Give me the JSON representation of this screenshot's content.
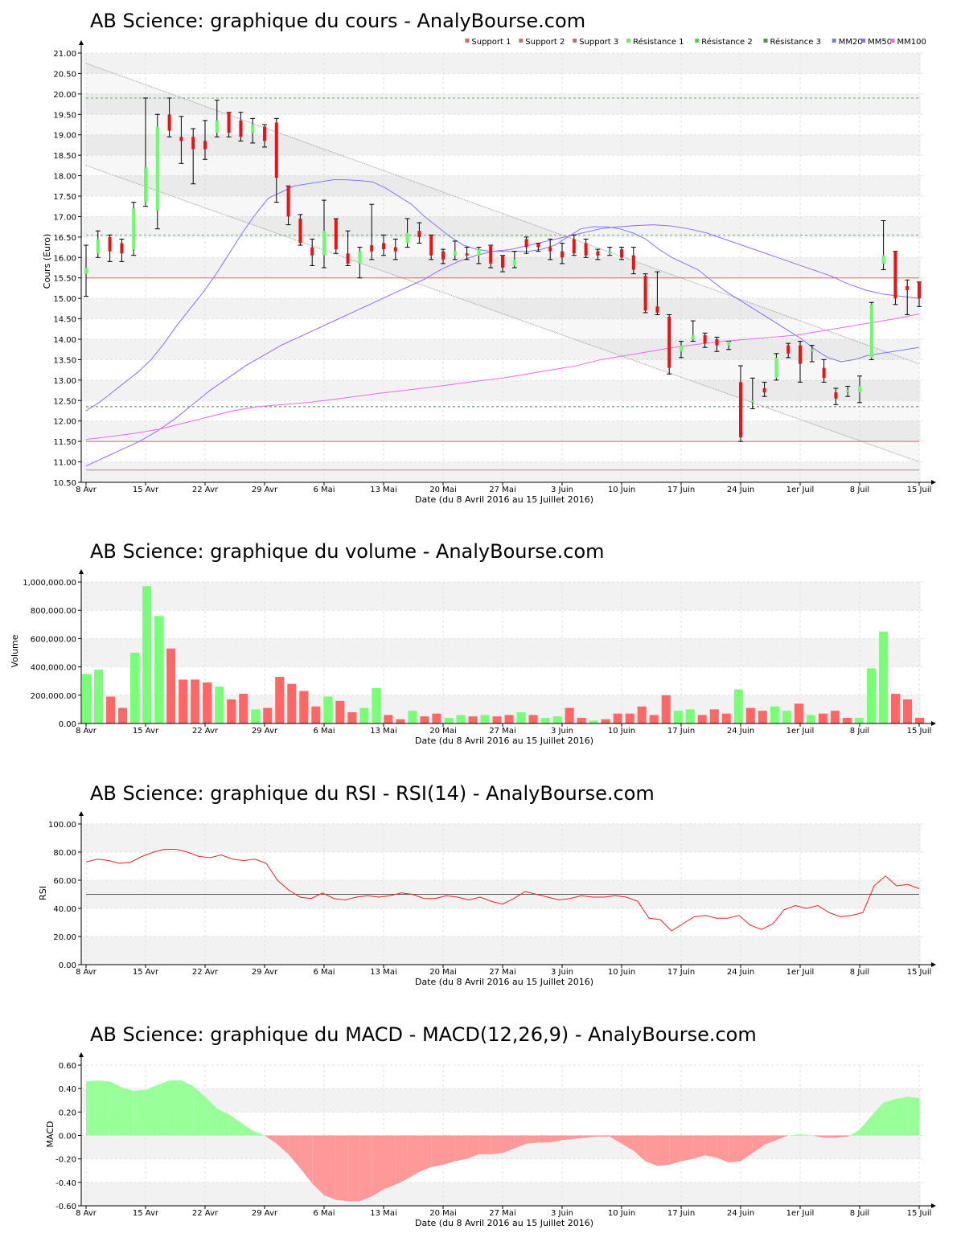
{
  "date_axis": {
    "ticks": [
      "8 Avr",
      "15 Avr",
      "22 Avr",
      "29 Avr",
      "6 Mai",
      "13 Mai",
      "20 Mai",
      "27 Mai",
      "3 Juin",
      "10 Juin",
      "17 Juin",
      "24 Juin",
      "1er Juil",
      "8 Juil",
      "15 Juil"
    ],
    "xlabel": "Date (du 8 Avril 2016 au 15 Juillet 2016)"
  },
  "colors": {
    "up": "#66ff66",
    "down": "#ee1111",
    "vol_up": "#77ff77",
    "vol_down": "#ff6666",
    "mm20": "#7777ff",
    "mm50": "#9966ff",
    "mm100": "#ee66ee",
    "rsi": "#ee2222",
    "macd_pos": "#99ff99",
    "macd_neg": "#ff9999",
    "support": "#dd6666",
    "resistance": "#55bb55"
  },
  "chart_data": [
    {
      "id": "price",
      "type": "candlestick",
      "title": "AB Science: graphique du cours - AnalyBourse.com",
      "ylabel": "Cours (Euro)",
      "xlabel": "Date (du 8 Avril 2016 au 15 Juillet 2016)",
      "ylim": [
        10.5,
        21.0
      ],
      "y_ticks": [
        "10.50",
        "11.00",
        "11.50",
        "12.00",
        "12.50",
        "13.00",
        "13.50",
        "14.00",
        "14.50",
        "15.00",
        "15.50",
        "16.00",
        "16.50",
        "17.00",
        "17.50",
        "18.00",
        "18.50",
        "19.00",
        "19.50",
        "20.00",
        "20.50",
        "21.00"
      ],
      "legend": [
        "Support 1",
        "Support 2",
        "Support 3",
        "Résistance 1",
        "Résistance 2",
        "Résistance 3",
        "MM20",
        "MM50",
        "MM100"
      ],
      "legend_colors": [
        "#dd6666",
        "#bb7777",
        "#aa7777",
        "#66ee66",
        "#55cc55",
        "#449944",
        "#7777ff",
        "#9966ff",
        "#ee66ee"
      ],
      "levels": {
        "support1": 15.5,
        "support2": 11.5,
        "support3": 10.8,
        "resistance1": 19.9,
        "resistance2": 16.55,
        "resistance3": 12.35
      },
      "channel": {
        "upper": [
          20.75,
          13.4
        ],
        "lower": [
          18.25,
          11.0
        ]
      },
      "candles": [
        [
          15.6,
          15.75,
          16.3,
          15.05
        ],
        [
          16.1,
          16.45,
          16.65,
          16.0
        ],
        [
          16.5,
          16.15,
          16.55,
          15.9
        ],
        [
          16.35,
          16.1,
          16.45,
          15.9
        ],
        [
          16.2,
          17.2,
          17.35,
          16.05
        ],
        [
          17.35,
          18.2,
          19.9,
          17.25
        ],
        [
          17.15,
          19.2,
          19.5,
          16.7
        ],
        [
          19.5,
          19.1,
          19.9,
          18.95
        ],
        [
          18.95,
          18.85,
          19.45,
          18.3
        ],
        [
          18.95,
          18.65,
          19.15,
          17.8
        ],
        [
          18.85,
          18.65,
          19.35,
          18.4
        ],
        [
          19.05,
          19.35,
          19.85,
          18.95
        ],
        [
          19.55,
          19.05,
          19.55,
          18.95
        ],
        [
          19.35,
          18.95,
          19.55,
          18.85
        ],
        [
          19.05,
          19.25,
          19.4,
          18.8
        ],
        [
          19.2,
          18.85,
          19.25,
          18.7
        ],
        [
          19.3,
          17.95,
          19.4,
          17.35
        ],
        [
          17.75,
          17.0,
          17.75,
          16.8
        ],
        [
          16.95,
          16.35,
          17.05,
          16.3
        ],
        [
          16.25,
          16.05,
          16.45,
          15.8
        ],
        [
          16.05,
          16.65,
          17.4,
          15.75
        ],
        [
          16.95,
          16.2,
          16.95,
          16.1
        ],
        [
          16.1,
          15.85,
          16.65,
          15.8
        ],
        [
          15.85,
          16.15,
          16.25,
          15.5
        ],
        [
          16.3,
          16.15,
          17.3,
          15.95
        ],
        [
          16.35,
          16.2,
          16.55,
          16.05
        ],
        [
          16.25,
          16.15,
          16.45,
          15.95
        ],
        [
          16.35,
          16.6,
          16.95,
          16.25
        ],
        [
          16.65,
          16.5,
          16.85,
          16.35
        ],
        [
          16.55,
          16.05,
          16.55,
          15.95
        ],
        [
          16.15,
          15.95,
          16.2,
          15.85
        ],
        [
          16.05,
          16.15,
          16.4,
          15.95
        ],
        [
          16.1,
          16.05,
          16.25,
          15.95
        ],
        [
          16.05,
          16.2,
          16.25,
          15.85
        ],
        [
          16.3,
          15.85,
          16.3,
          15.75
        ],
        [
          16.05,
          15.75,
          16.05,
          15.65
        ],
        [
          15.8,
          15.95,
          16.15,
          15.75
        ],
        [
          16.45,
          16.25,
          16.5,
          16.1
        ],
        [
          16.35,
          16.25,
          16.35,
          16.15
        ],
        [
          16.25,
          16.15,
          16.45,
          15.95
        ],
        [
          16.15,
          16.0,
          16.35,
          15.85
        ],
        [
          16.45,
          16.1,
          16.55,
          16.05
        ],
        [
          16.35,
          16.05,
          16.45,
          16.0
        ],
        [
          16.15,
          16.05,
          16.2,
          15.95
        ],
        [
          16.15,
          16.15,
          16.25,
          16.05
        ],
        [
          16.2,
          16.0,
          16.25,
          15.95
        ],
        [
          16.05,
          15.7,
          16.25,
          15.6
        ],
        [
          15.55,
          14.7,
          15.6,
          14.65
        ],
        [
          14.8,
          14.65,
          15.65,
          14.6
        ],
        [
          14.55,
          13.3,
          14.6,
          13.15
        ],
        [
          13.7,
          13.85,
          13.95,
          13.55
        ],
        [
          14.0,
          14.1,
          14.45,
          13.95
        ],
        [
          14.1,
          13.9,
          14.15,
          13.8
        ],
        [
          14.0,
          13.85,
          14.05,
          13.7
        ],
        [
          13.85,
          13.95,
          13.95,
          13.75
        ],
        [
          12.95,
          11.6,
          13.35,
          11.5
        ],
        [
          12.5,
          12.5,
          13.05,
          12.3
        ],
        [
          12.8,
          12.7,
          12.95,
          12.6
        ],
        [
          13.05,
          13.55,
          13.65,
          13.0
        ],
        [
          13.85,
          13.65,
          13.9,
          13.55
        ],
        [
          13.85,
          13.4,
          13.95,
          12.95
        ],
        [
          13.7,
          13.75,
          13.85,
          13.45
        ],
        [
          13.3,
          13.05,
          13.5,
          12.95
        ],
        [
          12.7,
          12.55,
          12.8,
          12.4
        ],
        [
          12.75,
          12.75,
          12.85,
          12.6
        ],
        [
          12.7,
          12.85,
          13.1,
          12.45
        ],
        [
          13.55,
          14.85,
          14.9,
          13.5
        ],
        [
          15.85,
          16.05,
          16.9,
          15.7
        ],
        [
          16.15,
          15.0,
          16.15,
          14.85
        ],
        [
          15.3,
          15.2,
          15.45,
          14.6
        ],
        [
          15.4,
          15.0,
          15.4,
          14.8
        ]
      ],
      "mm20": [
        12.25,
        12.45,
        12.7,
        12.95,
        13.2,
        13.5,
        13.9,
        14.35,
        14.75,
        15.15,
        15.6,
        16.1,
        16.6,
        17.05,
        17.45,
        17.6,
        17.75,
        17.8,
        17.85,
        17.9,
        17.9,
        17.88,
        17.85,
        17.7,
        17.5,
        17.3,
        17.0,
        16.75,
        16.5,
        16.3,
        16.2,
        16.15,
        16.15,
        16.15,
        16.15,
        16.2,
        16.3,
        16.5,
        16.7,
        16.75,
        16.75,
        16.7,
        16.6,
        16.45,
        16.2,
        16.0,
        15.85,
        15.7,
        15.45,
        15.2,
        15.0,
        14.8,
        14.6,
        14.4,
        14.2,
        14.0,
        13.75,
        13.55,
        13.45,
        13.5,
        13.6,
        13.65,
        13.7,
        13.75,
        13.8
      ],
      "mm50": [
        10.9,
        11.1,
        11.3,
        11.5,
        11.75,
        12.05,
        12.4,
        12.75,
        13.05,
        13.35,
        13.6,
        13.85,
        14.05,
        14.25,
        14.45,
        14.65,
        14.85,
        15.05,
        15.25,
        15.45,
        15.7,
        15.9,
        16.05,
        16.15,
        16.2,
        16.3,
        16.4,
        16.5,
        16.6,
        16.7,
        16.75,
        16.78,
        16.8,
        16.77,
        16.7,
        16.6,
        16.45,
        16.3,
        16.15,
        16.0,
        15.85,
        15.7,
        15.55,
        15.35,
        15.2,
        15.1,
        15.05,
        15.0
      ],
      "mm100": [
        11.55,
        11.62,
        11.7,
        11.8,
        11.95,
        12.1,
        12.25,
        12.35,
        12.4,
        12.45,
        12.52,
        12.6,
        12.68,
        12.75,
        12.82,
        12.9,
        12.98,
        13.05,
        13.15,
        13.25,
        13.35,
        13.5,
        13.6,
        13.7,
        13.8,
        13.88,
        13.95,
        14.0,
        14.05,
        14.1,
        14.2,
        14.3,
        14.4,
        14.5,
        14.62
      ]
    },
    {
      "id": "volume",
      "type": "bar",
      "title": "AB Science: graphique du volume - AnalyBourse.com",
      "ylabel": "Volume",
      "xlabel": "Date (du 8 Avril 2016 au 15 Juillet 2016)",
      "ylim": [
        0,
        1000000
      ],
      "y_ticks": [
        "0.00",
        "200,000.00",
        "400,000.00",
        "600,000.00",
        "800,000.00",
        "1,000,000.00"
      ],
      "values": [
        350000,
        380000,
        190000,
        110000,
        500000,
        970000,
        760000,
        530000,
        310000,
        310000,
        290000,
        260000,
        170000,
        210000,
        100000,
        110000,
        330000,
        280000,
        230000,
        120000,
        190000,
        160000,
        80000,
        110000,
        250000,
        60000,
        30000,
        90000,
        50000,
        70000,
        40000,
        60000,
        50000,
        60000,
        50000,
        60000,
        80000,
        60000,
        40000,
        50000,
        110000,
        40000,
        20000,
        30000,
        70000,
        70000,
        120000,
        60000,
        200000,
        90000,
        100000,
        60000,
        100000,
        70000,
        240000,
        110000,
        90000,
        120000,
        90000,
        140000,
        60000,
        70000,
        90000,
        40000,
        40000,
        390000,
        650000,
        210000,
        170000,
        40000
      ],
      "up": [
        1,
        1,
        0,
        0,
        1,
        1,
        1,
        0,
        0,
        0,
        0,
        1,
        0,
        0,
        1,
        0,
        0,
        0,
        0,
        0,
        1,
        0,
        0,
        1,
        1,
        0,
        0,
        1,
        0,
        0,
        1,
        1,
        0,
        1,
        0,
        0,
        1,
        0,
        1,
        1,
        0,
        0,
        1,
        0,
        0,
        0,
        0,
        0,
        0,
        1,
        1,
        0,
        0,
        0,
        1,
        0,
        0,
        1,
        1,
        0,
        1,
        0,
        0,
        0,
        1,
        1,
        1,
        0,
        0,
        0
      ]
    },
    {
      "id": "rsi",
      "type": "line",
      "title": "AB Science: graphique du RSI - RSI(14) - AnalyBourse.com",
      "ylabel": "RSI",
      "xlabel": "Date (du 8 Avril 2016 au 15 Juillet 2016)",
      "ylim": [
        0,
        100
      ],
      "y_ticks": [
        "0.00",
        "20.00",
        "40.00",
        "60.00",
        "80.00",
        "100.00"
      ],
      "reference": 50,
      "values": [
        73,
        75,
        74,
        72,
        73,
        77,
        80,
        82,
        82,
        80,
        77,
        76,
        78,
        75,
        74,
        75,
        72,
        60,
        53,
        48,
        47,
        51,
        47,
        46,
        48,
        49,
        48,
        49,
        51,
        50,
        47,
        47,
        49,
        48,
        46,
        48,
        45,
        43,
        47,
        52,
        50,
        48,
        46,
        47,
        49,
        48,
        48,
        49,
        48,
        45,
        33,
        32,
        24,
        29,
        34,
        35,
        33,
        33,
        35,
        28,
        25,
        29,
        39,
        42,
        40,
        42,
        37,
        34,
        35,
        37,
        56,
        63,
        56,
        57,
        54
      ],
      "segments": 75
    },
    {
      "id": "macd",
      "type": "area",
      "title": "AB Science: graphique du MACD - MACD(12,26,9) - AnalyBourse.com",
      "ylabel": "MACD",
      "xlabel": "Date (du 8 Avril 2016 au 15 Juillet 2016)",
      "ylim": [
        -0.6,
        0.6
      ],
      "y_ticks": [
        "-0.60",
        "-0.40",
        "-0.20",
        "0.00",
        "0.20",
        "0.40",
        "0.60"
      ],
      "values": [
        0.46,
        0.47,
        0.46,
        0.41,
        0.38,
        0.39,
        0.43,
        0.47,
        0.47,
        0.42,
        0.33,
        0.23,
        0.18,
        0.11,
        0.04,
        0.0,
        -0.07,
        -0.16,
        -0.28,
        -0.41,
        -0.51,
        -0.55,
        -0.56,
        -0.56,
        -0.52,
        -0.46,
        -0.42,
        -0.37,
        -0.31,
        -0.27,
        -0.25,
        -0.22,
        -0.2,
        -0.16,
        -0.16,
        -0.15,
        -0.11,
        -0.07,
        -0.06,
        -0.06,
        -0.04,
        -0.03,
        -0.02,
        -0.01,
        -0.01,
        -0.07,
        -0.13,
        -0.22,
        -0.26,
        -0.25,
        -0.22,
        -0.2,
        -0.17,
        -0.19,
        -0.23,
        -0.22,
        -0.15,
        -0.08,
        -0.04,
        0.0,
        0.01,
        0.0,
        -0.02,
        -0.02,
        -0.01,
        0.05,
        0.17,
        0.28,
        0.31,
        0.33,
        0.32
      ]
    }
  ]
}
